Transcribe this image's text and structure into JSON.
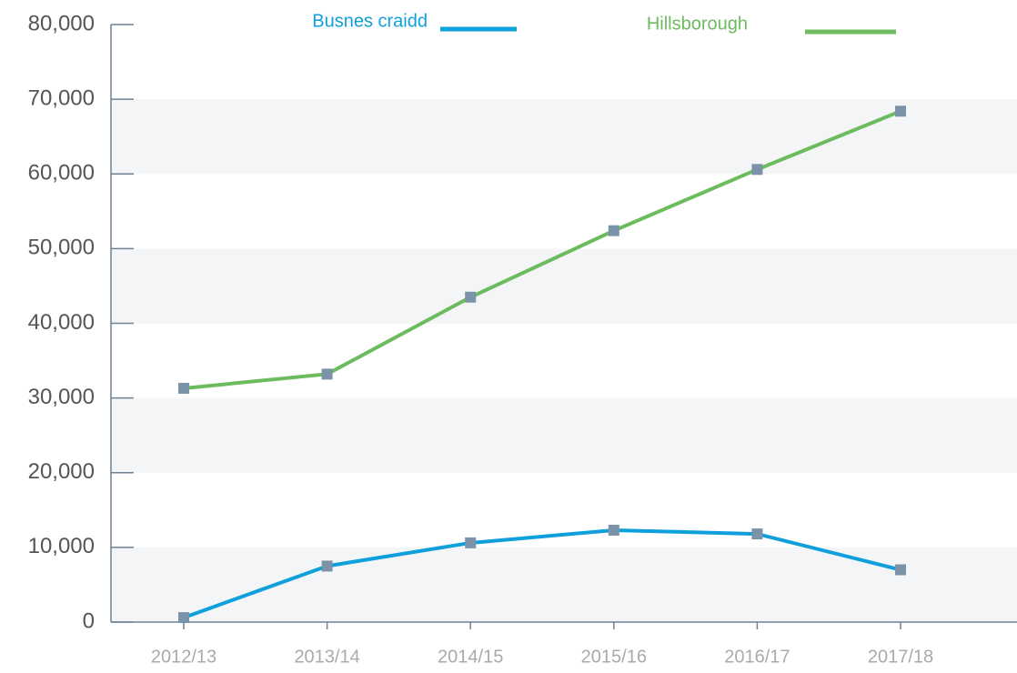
{
  "chart_data": {
    "type": "line",
    "categories": [
      "2012/13",
      "2013/14",
      "2014/15",
      "2015/16",
      "2016/17",
      "2017/18"
    ],
    "series": [
      {
        "name": "Busnes craidd",
        "color": "#0fa0dc",
        "values": [
          600,
          7500,
          10600,
          12300,
          11800,
          7000
        ]
      },
      {
        "name": "Hillsborough",
        "color": "#6dbb5f",
        "values": [
          31300,
          33200,
          43500,
          52400,
          60600,
          68400
        ]
      }
    ],
    "marker_color": "#7a93a8",
    "ylim": [
      0,
      80000
    ],
    "yticks": [
      0,
      {
        "value": 10000,
        "label": "10,000"
      },
      {
        "value": 20000,
        "label": "20,000"
      },
      {
        "value": 30000,
        "label": "30,000"
      },
      {
        "value": 40000,
        "label": "40,000"
      },
      {
        "value": 50000,
        "label": "50,000"
      },
      {
        "value": 60000,
        "label": "60,000"
      },
      {
        "value": 70000,
        "label": "70,000"
      },
      {
        "value": 80000,
        "label": "80,000"
      }
    ],
    "grid": "bands"
  }
}
